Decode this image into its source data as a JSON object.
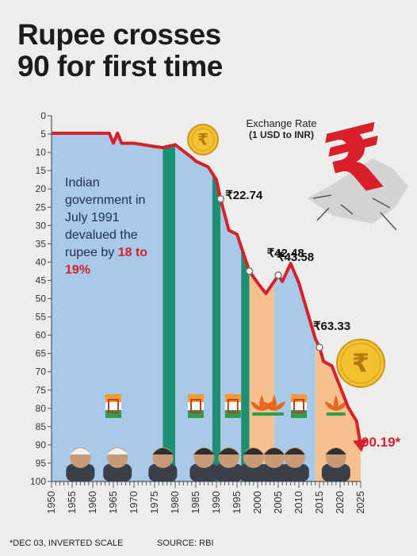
{
  "title_lines": [
    "Rupee crosses",
    "90 for first time"
  ],
  "legend": {
    "line1": "Exchange Rate",
    "line2": "(1 USD to INR)"
  },
  "note": {
    "text": "Indian government in July 1991 devalued the rupee by",
    "highlight": "18 to 19%"
  },
  "footer": {
    "left": "*DEC 03,   INVERTED SCALE",
    "right": "SOURCE: RBI"
  },
  "colors": {
    "congress": "#a9c9e8",
    "transition": "#1e8f72",
    "bjp": "#f6c08f",
    "line": "#d8202a",
    "axis": "#555555"
  },
  "icons": [
    "rupee-coin-icon",
    "rupee-symbol-icon",
    "congress-hand-icon",
    "bjp-lotus-icon",
    "pm-portrait-icon"
  ],
  "chart_data": {
    "type": "line",
    "xlim": [
      1950,
      2025
    ],
    "ylim": [
      0,
      100
    ],
    "inverted_y": true,
    "x_ticks": [
      1950,
      1955,
      1960,
      1965,
      1970,
      1975,
      1980,
      1985,
      1990,
      1995,
      2000,
      2005,
      2010,
      2015,
      2020,
      2025
    ],
    "y_ticks": [
      0,
      5,
      10,
      15,
      20,
      25,
      30,
      35,
      40,
      45,
      50,
      55,
      60,
      65,
      70,
      75,
      80,
      85,
      90,
      95,
      100
    ],
    "series": [
      {
        "x": [
          1950,
          1964,
          1965,
          1966,
          1967,
          1970,
          1975,
          1977,
          1980,
          1984,
          1985,
          1988,
          1990,
          1991,
          1993,
          1995,
          1998,
          2000,
          2002,
          2004,
          2005,
          2006,
          2008,
          2010,
          2012,
          2014,
          2015,
          2016,
          2018,
          2020,
          2022,
          2024,
          2025
        ],
        "y": [
          4.76,
          4.76,
          7.5,
          4.76,
          7.5,
          7.5,
          8.4,
          8.7,
          7.9,
          11.4,
          12.4,
          14,
          17.5,
          22.74,
          31.3,
          32.4,
          42.48,
          45.7,
          48.6,
          45.3,
          43.58,
          45.3,
          40.4,
          45.7,
          53.4,
          61,
          63.33,
          67.2,
          68.4,
          74.1,
          79.8,
          83.5,
          90.19
        ]
      }
    ],
    "regimes": [
      {
        "party": "congress",
        "from": 1950,
        "to": 1977
      },
      {
        "party": "transition",
        "from": 1977,
        "to": 1980
      },
      {
        "party": "congress",
        "from": 1980,
        "to": 1989
      },
      {
        "party": "transition",
        "from": 1989,
        "to": 1991
      },
      {
        "party": "congress",
        "from": 1991,
        "to": 1996
      },
      {
        "party": "transition",
        "from": 1996,
        "to": 1998
      },
      {
        "party": "bjp",
        "from": 1998,
        "to": 2004
      },
      {
        "party": "congress",
        "from": 2004,
        "to": 2014
      },
      {
        "party": "bjp",
        "from": 2014,
        "to": 2025
      }
    ],
    "party_icons": [
      {
        "party": "congress",
        "x": 1965
      },
      {
        "party": "congress",
        "x": 1985
      },
      {
        "party": "congress",
        "x": 1994
      },
      {
        "party": "bjp",
        "x": 2001
      },
      {
        "party": "bjp",
        "x": 2004
      },
      {
        "party": "congress",
        "x": 2010
      },
      {
        "party": "bjp",
        "x": 2019
      }
    ],
    "portrait_x": [
      1957,
      1966,
      1977,
      1987,
      1993,
      1999,
      2004,
      2009,
      2019
    ],
    "annotations": [
      {
        "label": "₹22.74",
        "x": 1991,
        "y": 22.74
      },
      {
        "label": "₹42.48",
        "x": 1998,
        "y": 42.48
      },
      {
        "label": "₹43.58",
        "x": 2005,
        "y": 43.58
      },
      {
        "label": "₹63.33",
        "x": 2015,
        "y": 63.33
      },
      {
        "label": "90.19*",
        "x": 2025,
        "y": 90.19
      }
    ]
  }
}
